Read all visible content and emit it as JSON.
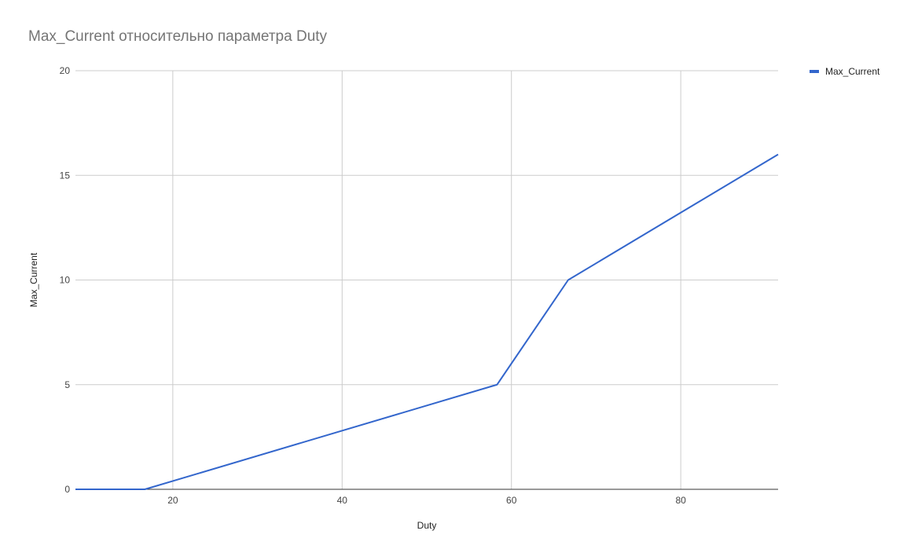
{
  "chart_data": {
    "type": "line",
    "title": "Max_Current относительно параметра Duty",
    "xlabel": "Duty",
    "ylabel": "Max_Current",
    "xlim": [
      8.5,
      91.5
    ],
    "ylim": [
      0,
      20
    ],
    "x_ticks": [
      20,
      40,
      60,
      80
    ],
    "y_ticks": [
      0,
      5,
      10,
      15,
      20
    ],
    "grid": true,
    "legend": "right-top",
    "series": [
      {
        "name": "Max_Current",
        "color": "#3366cc",
        "points": [
          {
            "x": 8.5,
            "y": 0
          },
          {
            "x": 16.7,
            "y": 0
          },
          {
            "x": 58.3,
            "y": 5
          },
          {
            "x": 66.7,
            "y": 10
          },
          {
            "x": 91.5,
            "y": 16
          }
        ]
      }
    ]
  }
}
